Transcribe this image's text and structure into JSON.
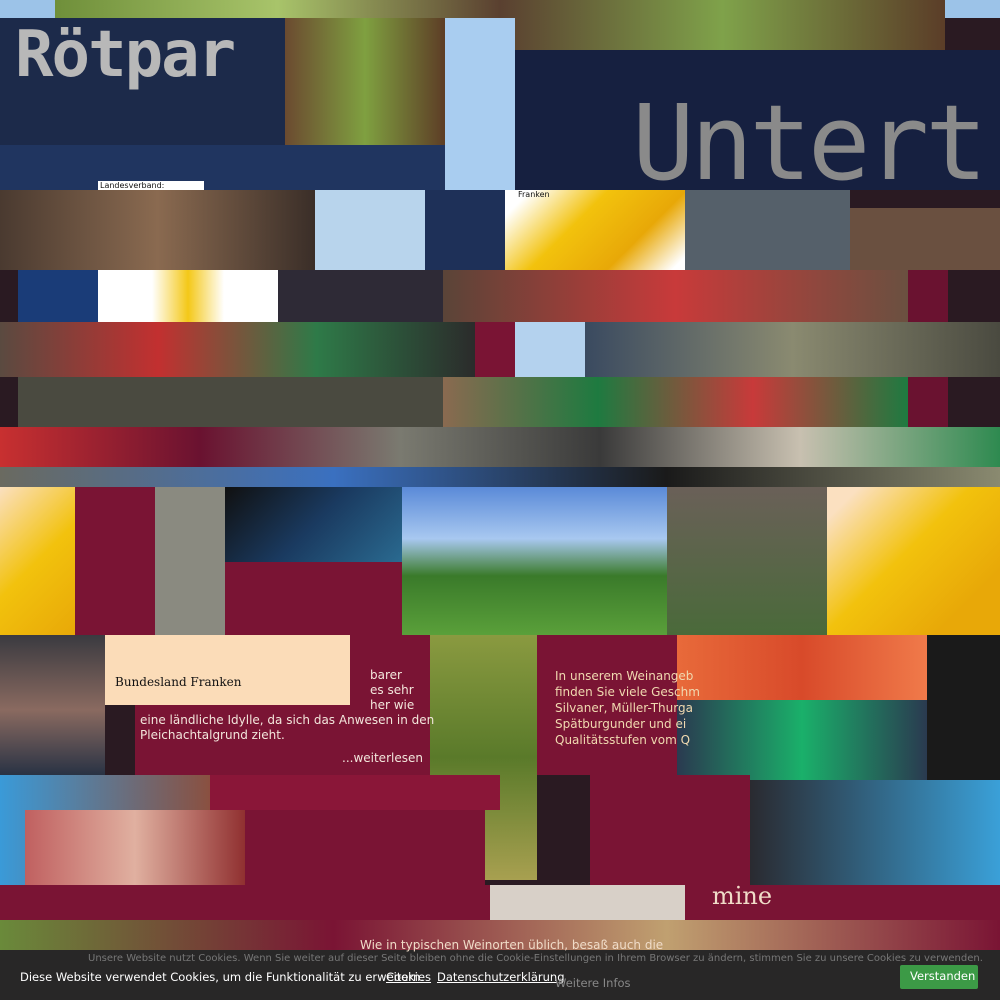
{
  "header": {
    "title": "Rötpar",
    "headline": "Untert"
  },
  "maps": [
    "Landesverband:",
    "Franken",
    "Bundesland Franken"
  ],
  "about": {
    "lines": [
      "barer",
      "es sehr",
      "her wie",
      "eine ländliche Idylle, da sich das Anwesen in den",
      "Pleichachtalgrund zieht."
    ],
    "more": "...weiterlesen"
  },
  "wine": {
    "lines": [
      "In unserem Weinangeb",
      "finden Sie viele Geschm",
      "Silvaner, Müller-Thurga",
      "Spätburgunder und ei",
      "Qualitätsstufen vom Q"
    ]
  },
  "history": {
    "heading": "mine",
    "text": "Wie in typischen Weinorten üblich, besaß auch die"
  },
  "cookie_bar": {
    "notice": "Unsere Website nutzt Cookies. Wenn Sie weiter auf dieser Seite bleiben ohne die Cookie-Einstellungen in Ihrem Browser zu ändern, stimmen Sie zu unsere Cookies zu verwenden.",
    "text": "Diese Website verwendet Cookies, um die Funktionalität zu erweitern.",
    "cookies_link": "Cookies",
    "privacy_link": "Datenschutzerklärung",
    "more_info": "Weitere Infos",
    "button": "Verstanden"
  }
}
